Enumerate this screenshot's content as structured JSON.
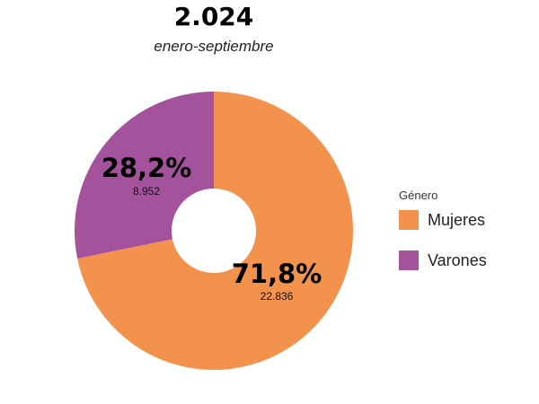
{
  "chart_data": {
    "type": "pie",
    "variant": "donut",
    "title": "2.024",
    "subtitle": "enero-septiembre",
    "legend_title": "Género",
    "legend_position": "right",
    "slices": [
      {
        "name": "Mujeres",
        "percent": 71.8,
        "percent_label": "71,8%",
        "value": 22836,
        "value_label": "22.836",
        "color": "#F2924D"
      },
      {
        "name": "Varones",
        "percent": 28.2,
        "percent_label": "28,2%",
        "value": 8952,
        "value_label": "8.952",
        "color": "#A5529D"
      }
    ]
  }
}
